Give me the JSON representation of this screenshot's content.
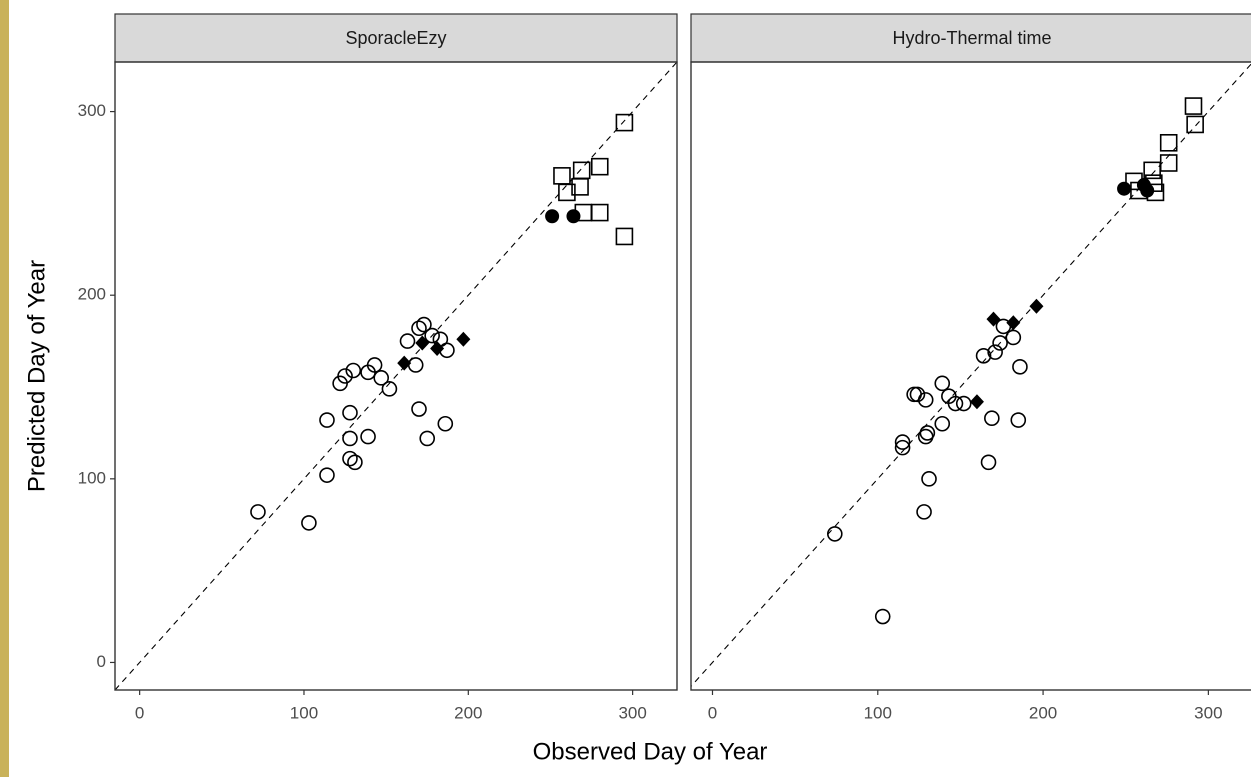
{
  "chart_data": [
    {
      "type": "scatter",
      "title": "SporacleEzy",
      "xlabel": "Observed Day of Year",
      "ylabel": "Predicted Day of Year",
      "xlim": [
        -15,
        327
      ],
      "ylim": [
        -15,
        327
      ],
      "xticks": [
        0,
        100,
        200,
        300
      ],
      "yticks": [
        0,
        100,
        200,
        300
      ],
      "identity_line": true,
      "series": [
        {
          "marker": "open-circle",
          "color": "#000000",
          "x": [
            72,
            103,
            114,
            114,
            122,
            125,
            130,
            128,
            128,
            128,
            131,
            139,
            139,
            143,
            147,
            152,
            163,
            168,
            170,
            173,
            170,
            175,
            183,
            186,
            187,
            178
          ],
          "values": [
            82,
            76,
            102,
            132,
            152,
            156,
            159,
            122,
            136,
            111,
            109,
            123,
            158,
            162,
            155,
            149,
            175,
            162,
            182,
            184,
            138,
            122,
            176,
            130,
            170,
            178
          ]
        },
        {
          "marker": "diamond",
          "color": "#000000",
          "x": [
            161,
            172,
            181,
            197
          ],
          "values": [
            163,
            174,
            171,
            176
          ]
        },
        {
          "marker": "filled-circle",
          "color": "#000000",
          "x": [
            251,
            264
          ],
          "values": [
            243,
            243
          ]
        },
        {
          "marker": "open-square",
          "color": "#000000",
          "x": [
            257,
            260,
            268,
            269,
            280,
            270,
            280,
            295,
            295
          ],
          "values": [
            265,
            256,
            259,
            268,
            270,
            245,
            245,
            232,
            294
          ]
        }
      ]
    },
    {
      "type": "scatter",
      "title": "Hydro-Thermal time",
      "xlim": [
        -13,
        327
      ],
      "ylim": [
        -15,
        327
      ],
      "xticks": [
        0,
        100,
        200,
        300
      ],
      "identity_line": true,
      "series": [
        {
          "marker": "open-circle",
          "color": "#000000",
          "x": [
            74,
            103,
            115,
            115,
            122,
            124,
            129,
            129,
            130,
            128,
            131,
            139,
            139,
            143,
            147,
            152,
            164,
            167,
            169,
            171,
            174,
            176,
            182,
            186,
            185
          ],
          "values": [
            70,
            25,
            120,
            117,
            146,
            146,
            143,
            123,
            125,
            82,
            100,
            130,
            152,
            145,
            141,
            141,
            167,
            109,
            133,
            169,
            174,
            183,
            177,
            161,
            132
          ]
        },
        {
          "marker": "diamond",
          "color": "#000000",
          "x": [
            160,
            170,
            182,
            196
          ],
          "values": [
            142,
            187,
            185,
            194
          ]
        },
        {
          "marker": "filled-circle",
          "color": "#000000",
          "x": [
            249,
            261,
            263
          ],
          "values": [
            258,
            260,
            257
          ]
        },
        {
          "marker": "open-square",
          "color": "#000000",
          "x": [
            255,
            258,
            266,
            267,
            268,
            276,
            276,
            291,
            292
          ],
          "values": [
            262,
            257,
            268,
            261,
            256,
            272,
            283,
            303,
            293
          ]
        }
      ]
    }
  ]
}
